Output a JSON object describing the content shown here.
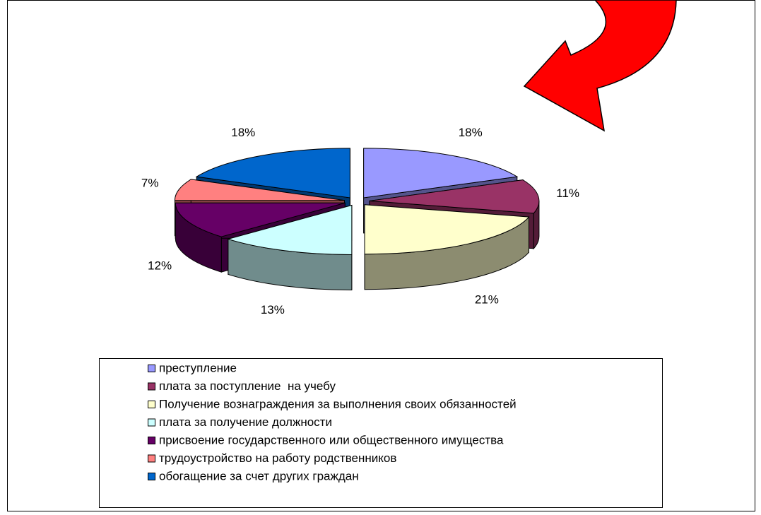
{
  "chart_data": {
    "type": "pie",
    "categories": [
      "преступление",
      "плата за поступление  на учебу",
      "Получение вознаграждения за выполнения своих обязанностей",
      "плата за получение должности",
      "присвоение государственного или общественного имущества",
      "трудоустройство на работу родственников",
      "обогащение за счет других граждан"
    ],
    "values": [
      18,
      11,
      21,
      13,
      12,
      7,
      18
    ],
    "value_labels": [
      "18%",
      "11%",
      "21%",
      "13%",
      "12%",
      "7%",
      "18%"
    ],
    "colors": [
      "#9999ff",
      "#993366",
      "#ffffcc",
      "#ccffff",
      "#660066",
      "#ff8080",
      "#0066cc"
    ],
    "legend": "bottom"
  }
}
